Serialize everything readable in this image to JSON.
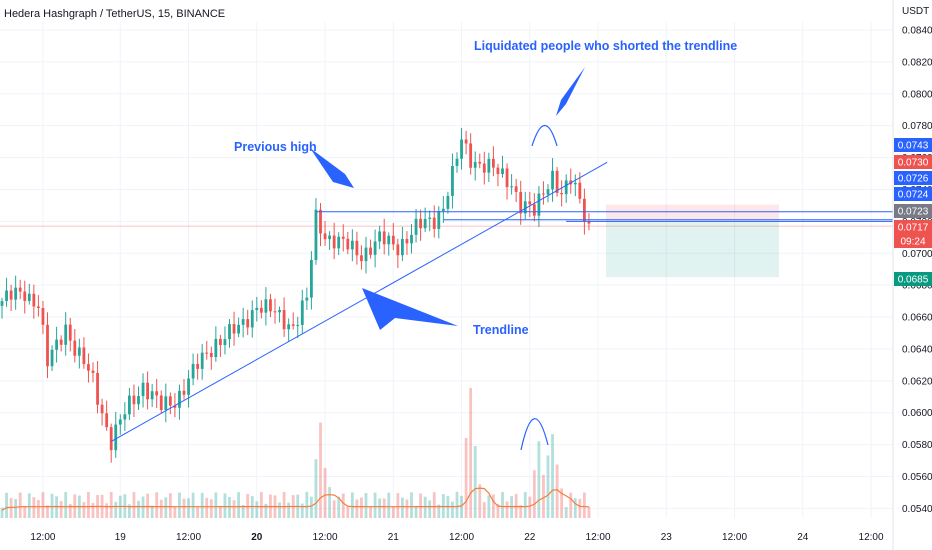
{
  "header": {
    "symbol_line": "Hedera Hashgraph / TetherUS, 15, BINANCE",
    "currency": "USDT"
  },
  "colors": {
    "up": "#26a69a",
    "down": "#ef5350",
    "annotation": "#2962ff",
    "volume_ma": "#f57c3b",
    "grid": "#f0f3fa"
  },
  "annotations": {
    "previous_high": "Previous high",
    "trendline": "Trendline",
    "liquidated": "Liquidated people who shorted the trendline"
  },
  "price_tags": [
    {
      "label": "0.0743",
      "color": "#2962ff"
    },
    {
      "label": "0.0730",
      "color": "#ef5350"
    },
    {
      "label": "0.0726",
      "color": "#2962ff"
    },
    {
      "label": "0.0724",
      "color": "#2962ff"
    },
    {
      "label": "0.0723",
      "color": "#787b86"
    },
    {
      "label": "0.0717",
      "color": "#ef5350"
    },
    {
      "label": "09:24",
      "color": "#ef5350"
    },
    {
      "label": "0.0685",
      "color": "#089981"
    }
  ],
  "chart_data": {
    "type": "candlestick",
    "title": "Hedera Hashgraph / TetherUS, 15, BINANCE",
    "ylabel": "USDT",
    "ylim": [
      0.0534,
      0.0845
    ],
    "y_ticks": [
      "0.0540",
      "0.0560",
      "0.0580",
      "0.0600",
      "0.0620",
      "0.0640",
      "0.0660",
      "0.0680",
      "0.0700",
      "0.0720",
      "0.0740",
      "0.0760",
      "0.0780",
      "0.0800",
      "0.0820",
      "0.0840"
    ],
    "x_ticks": [
      "12:00",
      "19",
      "12:00",
      "20",
      "12:00",
      "21",
      "12:00",
      "22",
      "12:00",
      "23",
      "12:00",
      "24",
      "12:00"
    ],
    "x_tick_bold": [
      "20"
    ],
    "close_path": [
      {
        "x": 0,
        "y": 0.067
      },
      {
        "x": 5,
        "y": 0.0676
      },
      {
        "x": 8,
        "y": 0.0668
      },
      {
        "x": 10,
        "y": 0.063
      },
      {
        "x": 14,
        "y": 0.0655
      },
      {
        "x": 16,
        "y": 0.064
      },
      {
        "x": 20,
        "y": 0.062
      },
      {
        "x": 24,
        "y": 0.0582
      },
      {
        "x": 28,
        "y": 0.0605
      },
      {
        "x": 31,
        "y": 0.0618
      },
      {
        "x": 35,
        "y": 0.0603
      },
      {
        "x": 38,
        "y": 0.0608
      },
      {
        "x": 42,
        "y": 0.0625
      },
      {
        "x": 47,
        "y": 0.0645
      },
      {
        "x": 52,
        "y": 0.0652
      },
      {
        "x": 56,
        "y": 0.0668
      },
      {
        "x": 61,
        "y": 0.066
      },
      {
        "x": 64,
        "y": 0.0655
      },
      {
        "x": 67,
        "y": 0.067
      },
      {
        "x": 69,
        "y": 0.0722
      },
      {
        "x": 71,
        "y": 0.0712
      },
      {
        "x": 75,
        "y": 0.0705
      },
      {
        "x": 79,
        "y": 0.07
      },
      {
        "x": 83,
        "y": 0.0708
      },
      {
        "x": 87,
        "y": 0.0705
      },
      {
        "x": 91,
        "y": 0.0715
      },
      {
        "x": 95,
        "y": 0.0722
      },
      {
        "x": 97,
        "y": 0.073
      },
      {
        "x": 99,
        "y": 0.0748
      },
      {
        "x": 101,
        "y": 0.077
      },
      {
        "x": 103,
        "y": 0.076
      },
      {
        "x": 106,
        "y": 0.0755
      },
      {
        "x": 109,
        "y": 0.075
      },
      {
        "x": 112,
        "y": 0.0745
      },
      {
        "x": 114,
        "y": 0.073
      },
      {
        "x": 117,
        "y": 0.0725
      },
      {
        "x": 119,
        "y": 0.074
      },
      {
        "x": 121,
        "y": 0.075
      },
      {
        "x": 123,
        "y": 0.0735
      },
      {
        "x": 125,
        "y": 0.0745
      },
      {
        "x": 127,
        "y": 0.0735
      },
      {
        "x": 129,
        "y": 0.0717
      }
    ],
    "volume_spikes": [
      {
        "x": 70,
        "v": 0.55
      },
      {
        "x": 103,
        "v": 0.85
      },
      {
        "x": 118,
        "v": 0.4
      },
      {
        "x": 121,
        "v": 0.5
      }
    ],
    "trendline": [
      {
        "x": 24,
        "y": 0.0582
      },
      {
        "x": 133,
        "y": 0.0757
      }
    ],
    "horizontal_levels": [
      {
        "price": 0.0726,
        "from_x": 69,
        "note": "previous high"
      },
      {
        "price": 0.0721,
        "from_x": 97
      },
      {
        "price": 0.072,
        "from_x": 124
      },
      {
        "price": 0.0717,
        "from_x": 0
      }
    ],
    "position": {
      "entry": 0.072,
      "stop": 0.0722,
      "target": 0.0685
    },
    "grid": true
  }
}
